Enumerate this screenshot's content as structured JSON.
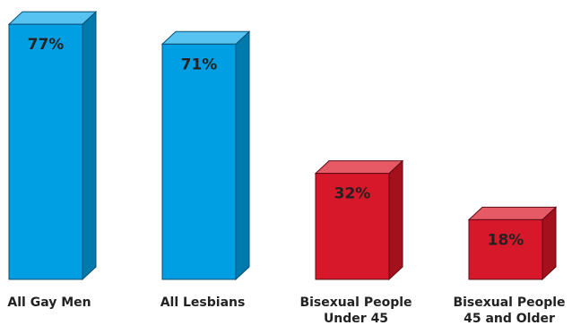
{
  "chart_data": {
    "type": "bar",
    "title": "",
    "xlabel": "",
    "ylabel": "",
    "ylim": [
      0,
      100
    ],
    "grid": false,
    "style": "3d",
    "categories": [
      [
        "All Gay Men"
      ],
      [
        "All Lesbians"
      ],
      [
        "Bisexual People",
        "Under 45"
      ],
      [
        "Bisexual People",
        "45 and Older"
      ]
    ],
    "values": [
      77,
      71,
      32,
      18
    ],
    "value_labels": [
      "77%",
      "71%",
      "32%",
      "18%"
    ],
    "colors": [
      {
        "front": "#009FE3",
        "side": "#0079AD",
        "top": "#56C3F0",
        "edge": "#0A4E73"
      },
      {
        "front": "#009FE3",
        "side": "#0079AD",
        "top": "#56C3F0",
        "edge": "#0A4E73"
      },
      {
        "front": "#D7182A",
        "side": "#A5101D",
        "top": "#E65A66",
        "edge": "#5E0A12"
      },
      {
        "front": "#D7182A",
        "side": "#A5101D",
        "top": "#E65A66",
        "edge": "#5E0A12"
      }
    ]
  }
}
